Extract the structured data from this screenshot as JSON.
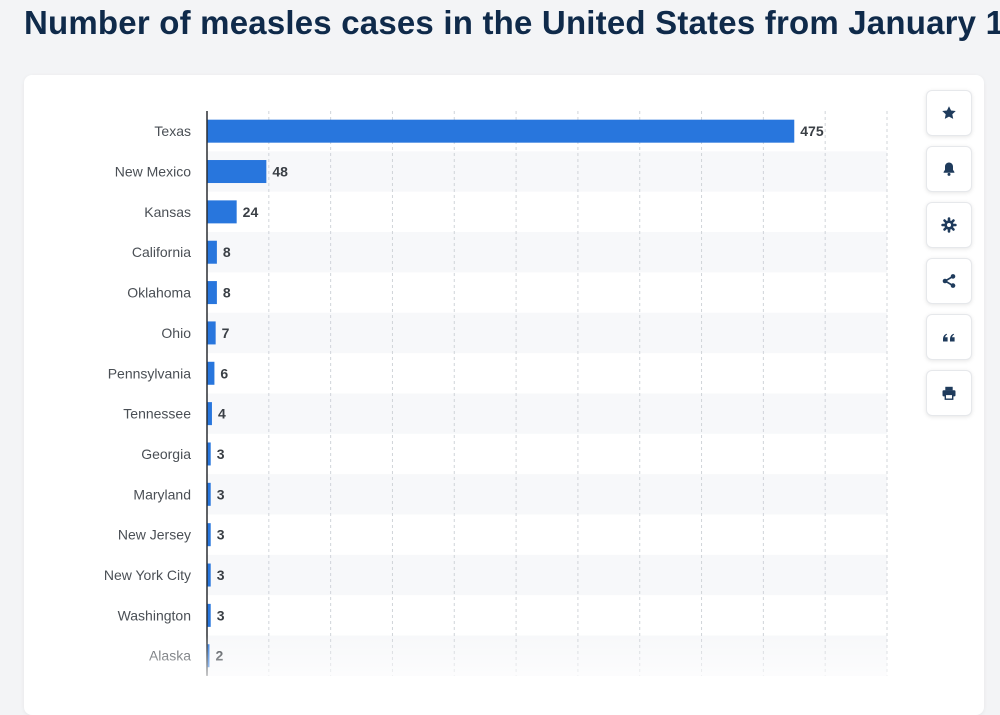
{
  "page": {
    "title": "Number of measles cases in the United States from January 1"
  },
  "toolbar": [
    {
      "name": "favorite-button",
      "icon": "star-icon"
    },
    {
      "name": "notification-button",
      "icon": "bell-icon"
    },
    {
      "name": "settings-button",
      "icon": "gear-icon"
    },
    {
      "name": "share-button",
      "icon": "share-icon"
    },
    {
      "name": "cite-button",
      "icon": "quote-icon"
    },
    {
      "name": "print-button",
      "icon": "printer-icon"
    }
  ],
  "colors": {
    "bar": "#2876dd",
    "title": "#0f2a4a",
    "label": "#4a4f55",
    "value": "#3a3f45",
    "stripe": "#f7f8fa",
    "grid": "#d0d4d9",
    "icon": "#1f3b5c"
  },
  "chart_data": {
    "type": "bar",
    "orientation": "horizontal",
    "title": "Number of measles cases in the United States from January 1",
    "xlim": [
      0,
      550
    ],
    "grid": true,
    "categories": [
      "Texas",
      "New Mexico",
      "Kansas",
      "California",
      "Oklahoma",
      "Ohio",
      "Pennsylvania",
      "Tennessee",
      "Georgia",
      "Maryland",
      "New Jersey",
      "New York City",
      "Washington",
      "Alaska"
    ],
    "values": [
      475,
      48,
      24,
      8,
      8,
      7,
      6,
      4,
      3,
      3,
      3,
      3,
      3,
      2
    ]
  }
}
